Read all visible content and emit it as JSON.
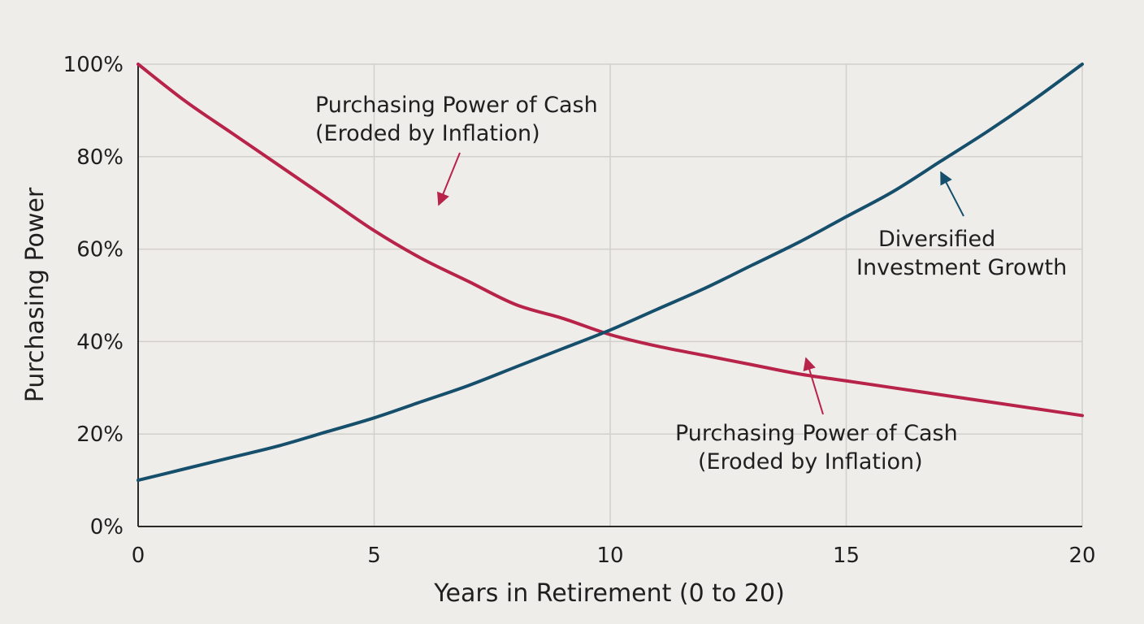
{
  "chart_data": {
    "type": "line",
    "title": "",
    "xlabel": "Years in Retirement (0 to 20)",
    "ylabel": "Purchasing Power",
    "xlim": [
      0,
      20
    ],
    "ylim": [
      0,
      100
    ],
    "x_ticks": [
      0,
      5,
      10,
      15,
      20
    ],
    "x_tick_labels": [
      "0",
      "5",
      "10",
      "15",
      "20"
    ],
    "y_ticks": [
      0,
      20,
      40,
      60,
      80,
      100
    ],
    "y_tick_labels": [
      "0%",
      "20%",
      "40%",
      "60%",
      "80%",
      "100%"
    ],
    "grid": true,
    "legend": "none",
    "series": [
      {
        "key": "cash",
        "color": "#b8234a",
        "x": [
          0,
          1,
          2,
          3,
          4,
          5,
          6,
          7,
          8,
          9,
          10,
          11,
          12,
          13,
          14,
          15,
          16,
          17,
          18,
          19,
          20
        ],
        "y": [
          100,
          92,
          85,
          78,
          71,
          64,
          58,
          53,
          48,
          45,
          41.5,
          39,
          37,
          35,
          33,
          31.5,
          30,
          28.5,
          27,
          25.5,
          24
        ]
      },
      {
        "key": "investment",
        "color": "#164f6b",
        "x": [
          0,
          1,
          2,
          3,
          4,
          5,
          6,
          7,
          8,
          9,
          10,
          11,
          12,
          13,
          14,
          15,
          16,
          17,
          18,
          19,
          20
        ],
        "y": [
          10,
          12.5,
          15,
          17.5,
          20.5,
          23.5,
          27,
          30.5,
          34.5,
          38.5,
          42.5,
          47,
          51.5,
          56.5,
          61.5,
          67,
          72.5,
          79,
          85.5,
          92.5,
          100
        ]
      }
    ],
    "annotations": [
      {
        "id": "cash-top",
        "lines": [
          "Purchasing Power of Cash",
          "(Eroded by Inflation)"
        ],
        "color": "#b8234a"
      },
      {
        "id": "cash-bottom",
        "lines": [
          "Purchasing Power of Cash",
          "(Eroded by Inflation)"
        ],
        "color": "#b8234a"
      },
      {
        "id": "investment",
        "lines": [
          "Diversified",
          "Investment Growth"
        ],
        "color": "#164f6b"
      }
    ]
  }
}
